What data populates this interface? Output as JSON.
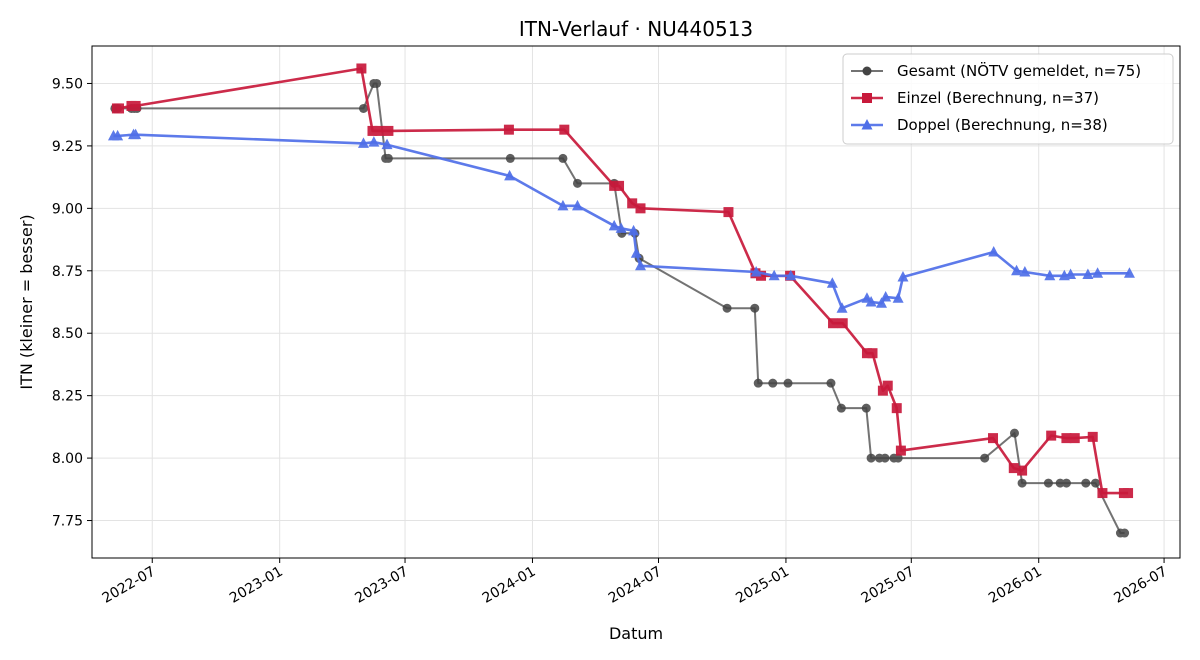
{
  "chart_data": {
    "type": "line",
    "title": "ITN-Verlauf · NU440513",
    "xlabel": "Datum",
    "ylabel": "ITN  (kleiner = besser)",
    "x_range": [
      "2022-04-05",
      "2026-07-24"
    ],
    "ylim": [
      7.6,
      9.65
    ],
    "yticks": [
      7.75,
      8.0,
      8.25,
      8.5,
      8.75,
      9.0,
      9.25,
      9.5
    ],
    "ytick_labels": [
      "7.75",
      "8.00",
      "8.25",
      "8.50",
      "8.75",
      "9.00",
      "9.25",
      "9.50"
    ],
    "xticks": [
      "2022-07-01",
      "2023-01-01",
      "2023-07-01",
      "2024-01-01",
      "2024-07-01",
      "2025-01-01",
      "2025-07-01",
      "2026-01-01",
      "2026-07-01"
    ],
    "xtick_labels": [
      "2022-07",
      "2023-01",
      "2023-07",
      "2024-01",
      "2024-07",
      "2025-01",
      "2025-07",
      "2026-01",
      "2026-07"
    ],
    "grid": true,
    "legend_position": "top-right",
    "series": [
      {
        "name": "Gesamt (NÖTV gemeldet, n=75)",
        "color": "#444444",
        "marker": "circle",
        "points": [
          [
            "2022-05-08",
            9.4
          ],
          [
            "2022-05-12",
            9.4
          ],
          [
            "2022-06-01",
            9.4
          ],
          [
            "2022-06-05",
            9.4
          ],
          [
            "2022-06-09",
            9.4
          ],
          [
            "2023-05-02",
            9.4
          ],
          [
            "2023-05-17",
            9.5
          ],
          [
            "2023-05-21",
            9.5
          ],
          [
            "2023-06-03",
            9.2
          ],
          [
            "2023-06-07",
            9.2
          ],
          [
            "2023-11-30",
            9.2
          ],
          [
            "2024-02-14",
            9.2
          ],
          [
            "2024-03-06",
            9.1
          ],
          [
            "2024-04-28",
            9.1
          ],
          [
            "2024-05-09",
            8.9
          ],
          [
            "2024-05-28",
            8.9
          ],
          [
            "2024-06-03",
            8.8
          ],
          [
            "2024-10-08",
            8.6
          ],
          [
            "2024-11-17",
            8.6
          ],
          [
            "2024-11-22",
            8.3
          ],
          [
            "2024-12-13",
            8.3
          ],
          [
            "2025-01-04",
            8.3
          ],
          [
            "2025-03-07",
            8.3
          ],
          [
            "2025-03-22",
            8.2
          ],
          [
            "2025-04-27",
            8.2
          ],
          [
            "2025-05-04",
            8.0
          ],
          [
            "2025-05-16",
            8.0
          ],
          [
            "2025-05-24",
            8.0
          ],
          [
            "2025-06-06",
            8.0
          ],
          [
            "2025-06-12",
            8.0
          ],
          [
            "2025-10-15",
            8.0
          ],
          [
            "2025-11-27",
            8.1
          ],
          [
            "2025-12-08",
            7.9
          ],
          [
            "2026-01-15",
            7.9
          ],
          [
            "2026-02-01",
            7.9
          ],
          [
            "2026-02-10",
            7.9
          ],
          [
            "2026-03-10",
            7.9
          ],
          [
            "2026-03-24",
            7.9
          ],
          [
            "2026-04-29",
            7.7
          ],
          [
            "2026-05-05",
            7.7
          ]
        ]
      },
      {
        "name": "Einzel (Berechnung, n=37)",
        "color": "#c8193b",
        "marker": "square",
        "points": [
          [
            "2022-05-11",
            9.4
          ],
          [
            "2022-05-14",
            9.4
          ],
          [
            "2022-06-01",
            9.41
          ],
          [
            "2022-06-07",
            9.41
          ],
          [
            "2023-04-29",
            9.56
          ],
          [
            "2023-05-15",
            9.31
          ],
          [
            "2023-05-25",
            9.31
          ],
          [
            "2023-06-07",
            9.31
          ],
          [
            "2023-11-28",
            9.315
          ],
          [
            "2024-02-16",
            9.315
          ],
          [
            "2024-04-28",
            9.09
          ],
          [
            "2024-05-05",
            9.09
          ],
          [
            "2024-05-24",
            9.02
          ],
          [
            "2024-06-05",
            9.0
          ],
          [
            "2024-10-10",
            8.985
          ],
          [
            "2024-11-18",
            8.74
          ],
          [
            "2024-11-26",
            8.73
          ],
          [
            "2025-01-07",
            8.73
          ],
          [
            "2025-03-10",
            8.54
          ],
          [
            "2025-03-24",
            8.54
          ],
          [
            "2025-04-28",
            8.42
          ],
          [
            "2025-05-06",
            8.42
          ],
          [
            "2025-05-21",
            8.27
          ],
          [
            "2025-05-28",
            8.29
          ],
          [
            "2025-06-10",
            8.2
          ],
          [
            "2025-06-16",
            8.03
          ],
          [
            "2025-10-27",
            8.08
          ],
          [
            "2025-11-26",
            7.96
          ],
          [
            "2025-12-08",
            7.95
          ],
          [
            "2026-01-19",
            8.09
          ],
          [
            "2026-02-10",
            8.08
          ],
          [
            "2026-02-22",
            8.08
          ],
          [
            "2026-03-20",
            8.085
          ],
          [
            "2026-04-03",
            7.86
          ],
          [
            "2026-05-04",
            7.86
          ],
          [
            "2026-05-10",
            7.86
          ]
        ]
      },
      {
        "name": "Doppel (Berechnung, n=38)",
        "color": "#4f6fe8",
        "marker": "triangle",
        "points": [
          [
            "2022-05-06",
            9.29
          ],
          [
            "2022-05-12",
            9.29
          ],
          [
            "2022-06-04",
            9.295
          ],
          [
            "2022-06-07",
            9.295
          ],
          [
            "2023-05-02",
            9.26
          ],
          [
            "2023-05-17",
            9.265
          ],
          [
            "2023-06-05",
            9.255
          ],
          [
            "2023-11-29",
            9.13
          ],
          [
            "2024-02-14",
            9.01
          ],
          [
            "2024-03-06",
            9.01
          ],
          [
            "2024-04-28",
            8.93
          ],
          [
            "2024-05-08",
            8.92
          ],
          [
            "2024-05-26",
            8.91
          ],
          [
            "2024-05-30",
            8.82
          ],
          [
            "2024-06-05",
            8.77
          ],
          [
            "2024-11-19",
            8.745
          ],
          [
            "2024-12-15",
            8.73
          ],
          [
            "2025-01-08",
            8.73
          ],
          [
            "2025-03-09",
            8.7
          ],
          [
            "2025-03-23",
            8.6
          ],
          [
            "2025-04-28",
            8.64
          ],
          [
            "2025-05-04",
            8.625
          ],
          [
            "2025-05-19",
            8.62
          ],
          [
            "2025-05-25",
            8.645
          ],
          [
            "2025-06-12",
            8.64
          ],
          [
            "2025-06-19",
            8.725
          ],
          [
            "2025-10-28",
            8.825
          ],
          [
            "2025-11-30",
            8.75
          ],
          [
            "2025-12-12",
            8.745
          ],
          [
            "2026-01-17",
            8.73
          ],
          [
            "2026-02-07",
            8.73
          ],
          [
            "2026-02-16",
            8.735
          ],
          [
            "2026-03-13",
            8.735
          ],
          [
            "2026-03-27",
            8.74
          ],
          [
            "2026-05-12",
            8.74
          ]
        ]
      }
    ]
  }
}
